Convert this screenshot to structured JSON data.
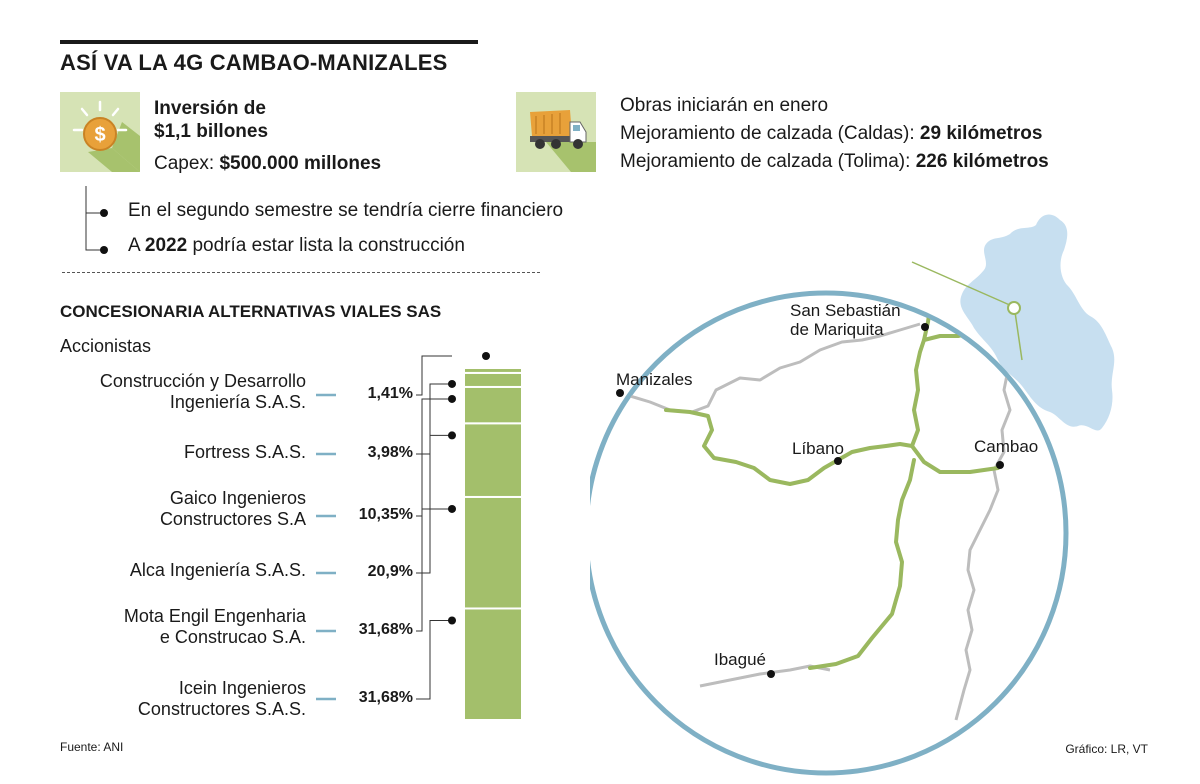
{
  "header": {
    "title": "ASÍ VA LA 4G CAMBAO-MANIZALES"
  },
  "investment": {
    "line1": "Inversión de",
    "line2": "$1,1 billones",
    "capex_label": "Capex: ",
    "capex_value": "$500.000 millones",
    "icon": "dollar-coin-icon"
  },
  "works": {
    "line1": "Obras iniciarán en enero",
    "caldas_label": "Mejoramiento de calzada (Caldas): ",
    "caldas_value": "29 kilómetros",
    "tolima_label": "Mejoramiento de calzada (Tolima): ",
    "tolima_value": "226 kilómetros",
    "icon": "dump-truck-icon"
  },
  "bullets": [
    {
      "text": "En el segundo semestre se tendría cierre financiero"
    },
    {
      "pre": "A ",
      "bold": "2022",
      "post": " podría estar lista la construcción"
    }
  ],
  "concession": {
    "title": "CONCESIONARIA ALTERNATIVAS VIALES SAS",
    "subtitle": "Accionistas"
  },
  "chart_data": {
    "type": "bar",
    "stacked": true,
    "categories": [
      "Construcción y Desarrollo Ingeniería S.A.S.",
      "Fortress S.A.S.",
      "Gaico Ingenieros Constructores S.A",
      "Alca Ingeniería S.A.S.",
      "Mota Engil Engenharia e Construcao S.A.",
      "Icein Ingenieros Constructores S.A.S."
    ],
    "name_lines": [
      [
        "Construcción y Desarrollo",
        "Ingeniería S.A.S."
      ],
      [
        "Fortress S.A.S."
      ],
      [
        "Gaico Ingenieros",
        "Constructores S.A"
      ],
      [
        "Alca Ingeniería S.A.S."
      ],
      [
        "Mota Engil Engenharia",
        "e Construcao S.A."
      ],
      [
        "Icein Ingenieros",
        "Constructores S.A.S."
      ]
    ],
    "values": [
      1.41,
      3.98,
      10.35,
      20.9,
      31.68,
      31.68
    ],
    "labels": [
      "1,41%",
      "3,98%",
      "10,35%",
      "20,9%",
      "31,68%",
      "31,68%"
    ],
    "bar_color": "#a3bf6b",
    "accent_color": "#7fb0c5"
  },
  "map": {
    "cities": {
      "mariquita_line1": "San Sebastián",
      "mariquita_line2": "de Mariquita",
      "manizales": "Manizales",
      "libano": "Líbano",
      "cambao": "Cambao",
      "ibague": "Ibagué"
    },
    "road_color": "#9ab85f",
    "circle_color": "#7fb0c5",
    "country_color": "#c7dff0"
  },
  "footer": {
    "source": "Fuente: ANI",
    "credit": "Gráfico: LR, VT"
  }
}
